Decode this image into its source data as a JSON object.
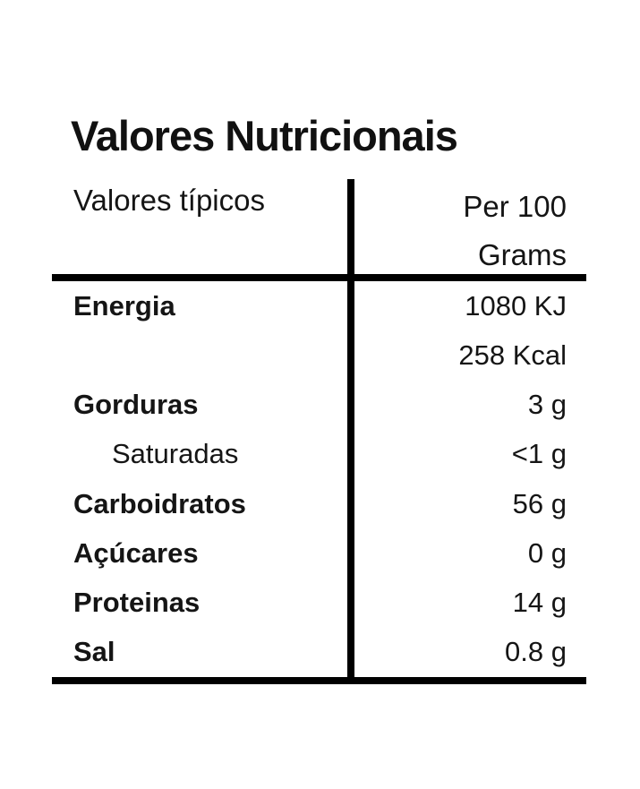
{
  "label": {
    "title": "Valores Nutricionais",
    "header": {
      "left": "Valores típicos",
      "right_line1": "Per 100",
      "right_line2": "Grams"
    },
    "rows": [
      {
        "name": "Energia",
        "value": "1080 KJ"
      },
      {
        "name": "",
        "value": "258 Kcal"
      },
      {
        "name": "Gorduras",
        "value": "3 g"
      },
      {
        "name": "Saturadas",
        "value": "<1 g"
      },
      {
        "name": "Carboidratos",
        "value": "56 g"
      },
      {
        "name": "Açúcares",
        "value": "0 g"
      },
      {
        "name": "Proteinas",
        "value": "14 g"
      },
      {
        "name": "Sal",
        "value": "0.8 g"
      }
    ],
    "colors": {
      "text": "#151515",
      "line": "#000000",
      "background": "#ffffff"
    }
  }
}
